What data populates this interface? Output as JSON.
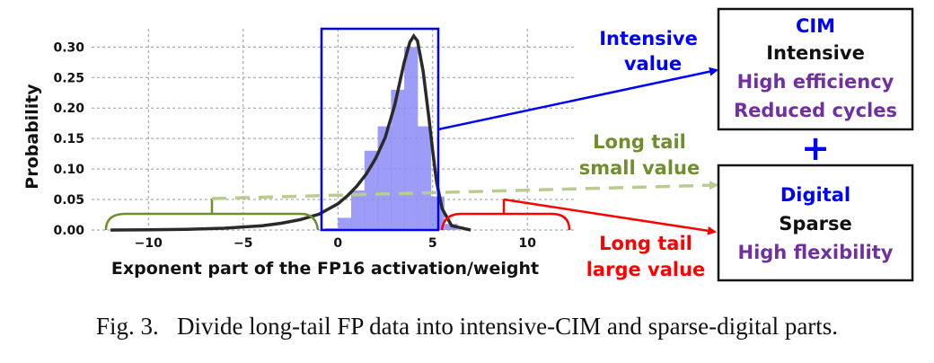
{
  "chart_data": {
    "type": "bar",
    "xlabel": "Exponent part of the FP16 activation/weight",
    "ylabel": "Probability",
    "xlim": [
      -13,
      12.5
    ],
    "ylim": [
      0,
      0.33
    ],
    "x_ticks": [
      {
        "value": -10,
        "label": "−10"
      },
      {
        "value": -5,
        "label": "−5"
      },
      {
        "value": 0,
        "label": "0"
      },
      {
        "value": 5,
        "label": "5"
      },
      {
        "value": 10,
        "label": "10"
      }
    ],
    "y_ticks": [
      {
        "value": 0.0,
        "label": "0.00"
      },
      {
        "value": 0.05,
        "label": "0.05"
      },
      {
        "value": 0.1,
        "label": "0.10"
      },
      {
        "value": 0.15,
        "label": "0.15"
      },
      {
        "value": 0.2,
        "label": "0.20"
      },
      {
        "value": 0.25,
        "label": "0.25"
      },
      {
        "value": 0.3,
        "label": "0.30"
      }
    ],
    "grid": true,
    "histogram": {
      "bin_width": 0.7,
      "bins": [
        {
          "x": -0.7,
          "value": 0.003
        },
        {
          "x": 0.0,
          "value": 0.02
        },
        {
          "x": 0.7,
          "value": 0.065
        },
        {
          "x": 1.4,
          "value": 0.13
        },
        {
          "x": 2.1,
          "value": 0.17
        },
        {
          "x": 2.8,
          "value": 0.23
        },
        {
          "x": 3.5,
          "value": 0.3
        },
        {
          "x": 4.2,
          "value": 0.17
        },
        {
          "x": 4.9,
          "value": 0.055
        },
        {
          "x": 5.6,
          "value": 0.01
        }
      ],
      "color": "#8c8cf7"
    },
    "curve": {
      "color": "#2a2a2a",
      "points": [
        [
          -12,
          0.0
        ],
        [
          -10,
          0.0003
        ],
        [
          -8,
          0.001
        ],
        [
          -6,
          0.003
        ],
        [
          -4,
          0.007
        ],
        [
          -3,
          0.011
        ],
        [
          -2,
          0.017
        ],
        [
          -1,
          0.026
        ],
        [
          0,
          0.043
        ],
        [
          0.5,
          0.056
        ],
        [
          1,
          0.072
        ],
        [
          1.5,
          0.092
        ],
        [
          2,
          0.118
        ],
        [
          2.5,
          0.152
        ],
        [
          3,
          0.205
        ],
        [
          3.5,
          0.275
        ],
        [
          3.8,
          0.308
        ],
        [
          4.0,
          0.318
        ],
        [
          4.2,
          0.31
        ],
        [
          4.5,
          0.26
        ],
        [
          4.8,
          0.185
        ],
        [
          5.0,
          0.13
        ],
        [
          5.2,
          0.08
        ],
        [
          5.5,
          0.035
        ],
        [
          6.0,
          0.007
        ],
        [
          7,
          0.0
        ]
      ]
    }
  },
  "colors": {
    "blue": "#0000ff",
    "green": "#6f8f2e",
    "light_green": "#b9cc8e",
    "red": "#ff0000",
    "purple": "#7030a0"
  },
  "labels": {
    "intensive_value": [
      "Intensive",
      "value"
    ],
    "long_tail_small": [
      "Long tail",
      "small value"
    ],
    "long_tail_large": [
      "Long tail",
      "large value"
    ],
    "plus": "+"
  },
  "boxes": {
    "cim": {
      "title": "CIM",
      "line1": "Intensive",
      "line2": "High efficiency",
      "line3": "Reduced cycles"
    },
    "digital": {
      "title": "Digital",
      "line1": "Sparse",
      "line2": "High flexibility"
    }
  },
  "caption": "Fig. 3.   Divide long-tail FP data into intensive-CIM and sparse-digital parts."
}
